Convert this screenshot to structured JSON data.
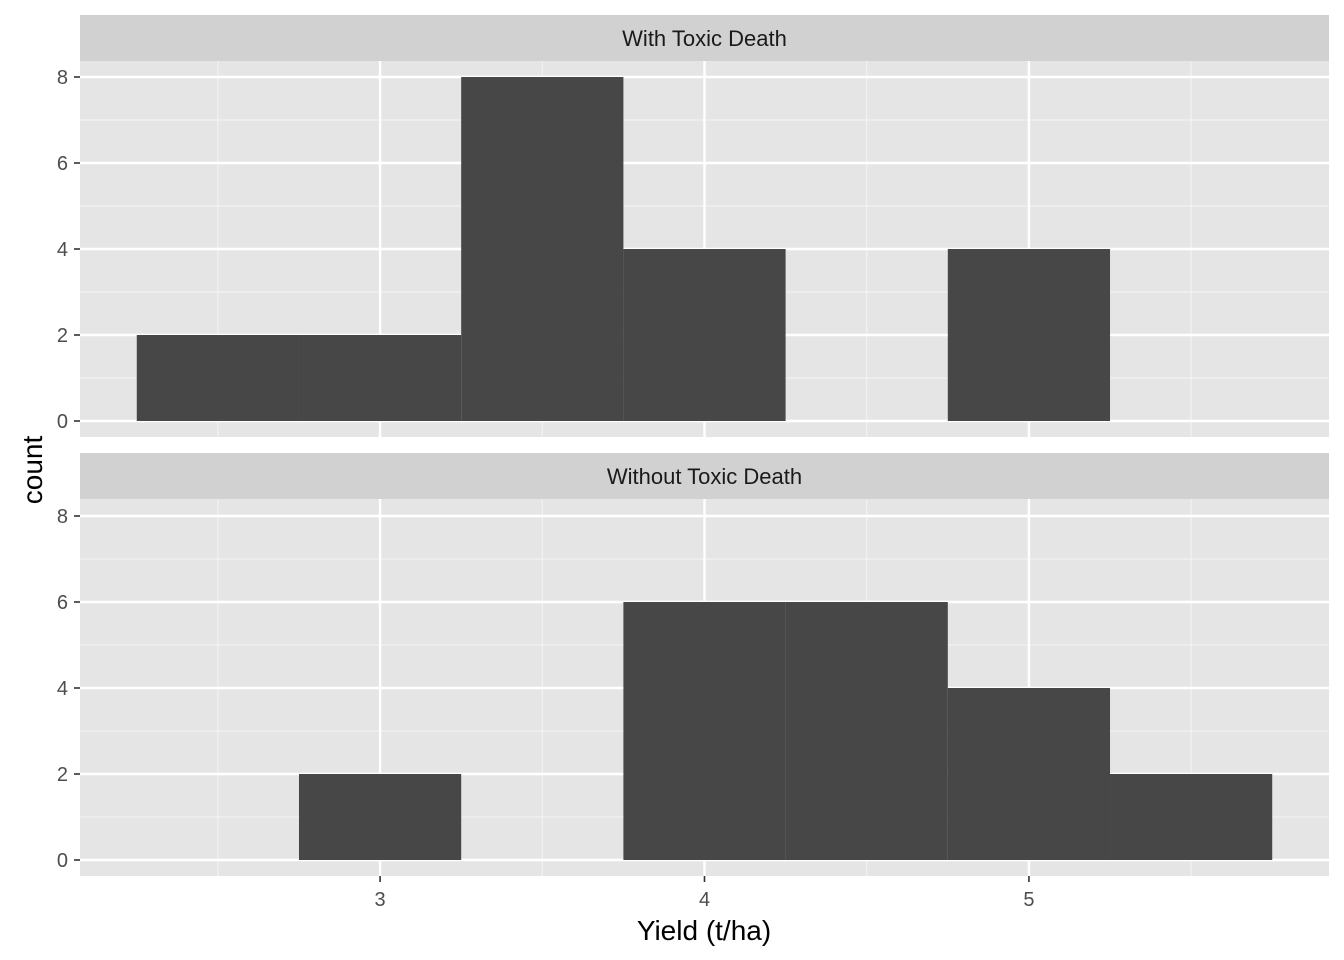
{
  "chart_data": {
    "type": "bar",
    "xlabel": "Yield (t/ha)",
    "ylabel": "count",
    "x_ticks": [
      3,
      4,
      5
    ],
    "y_ticks": [
      0,
      2,
      4,
      6,
      8
    ],
    "xlim": [
      2.075,
      5.925
    ],
    "ylim": [
      0,
      8.4
    ],
    "bin_width": 0.5,
    "grid": true,
    "bar_color": "#474747",
    "panel_background": "#e5e5e5",
    "strip_background": "#d1d1d1",
    "facets": [
      {
        "name": "With Toxic Death",
        "bins": [
          {
            "x_min": 2.25,
            "x_max": 2.75,
            "count": 2
          },
          {
            "x_min": 2.75,
            "x_max": 3.25,
            "count": 2
          },
          {
            "x_min": 3.25,
            "x_max": 3.75,
            "count": 8
          },
          {
            "x_min": 3.75,
            "x_max": 4.25,
            "count": 4
          },
          {
            "x_min": 4.75,
            "x_max": 5.25,
            "count": 4
          }
        ]
      },
      {
        "name": "Without Toxic Death",
        "bins": [
          {
            "x_min": 2.75,
            "x_max": 3.25,
            "count": 2
          },
          {
            "x_min": 3.75,
            "x_max": 4.25,
            "count": 6
          },
          {
            "x_min": 4.25,
            "x_max": 4.75,
            "count": 6
          },
          {
            "x_min": 4.75,
            "x_max": 5.25,
            "count": 4
          },
          {
            "x_min": 5.25,
            "x_max": 5.75,
            "count": 2
          }
        ]
      }
    ]
  }
}
